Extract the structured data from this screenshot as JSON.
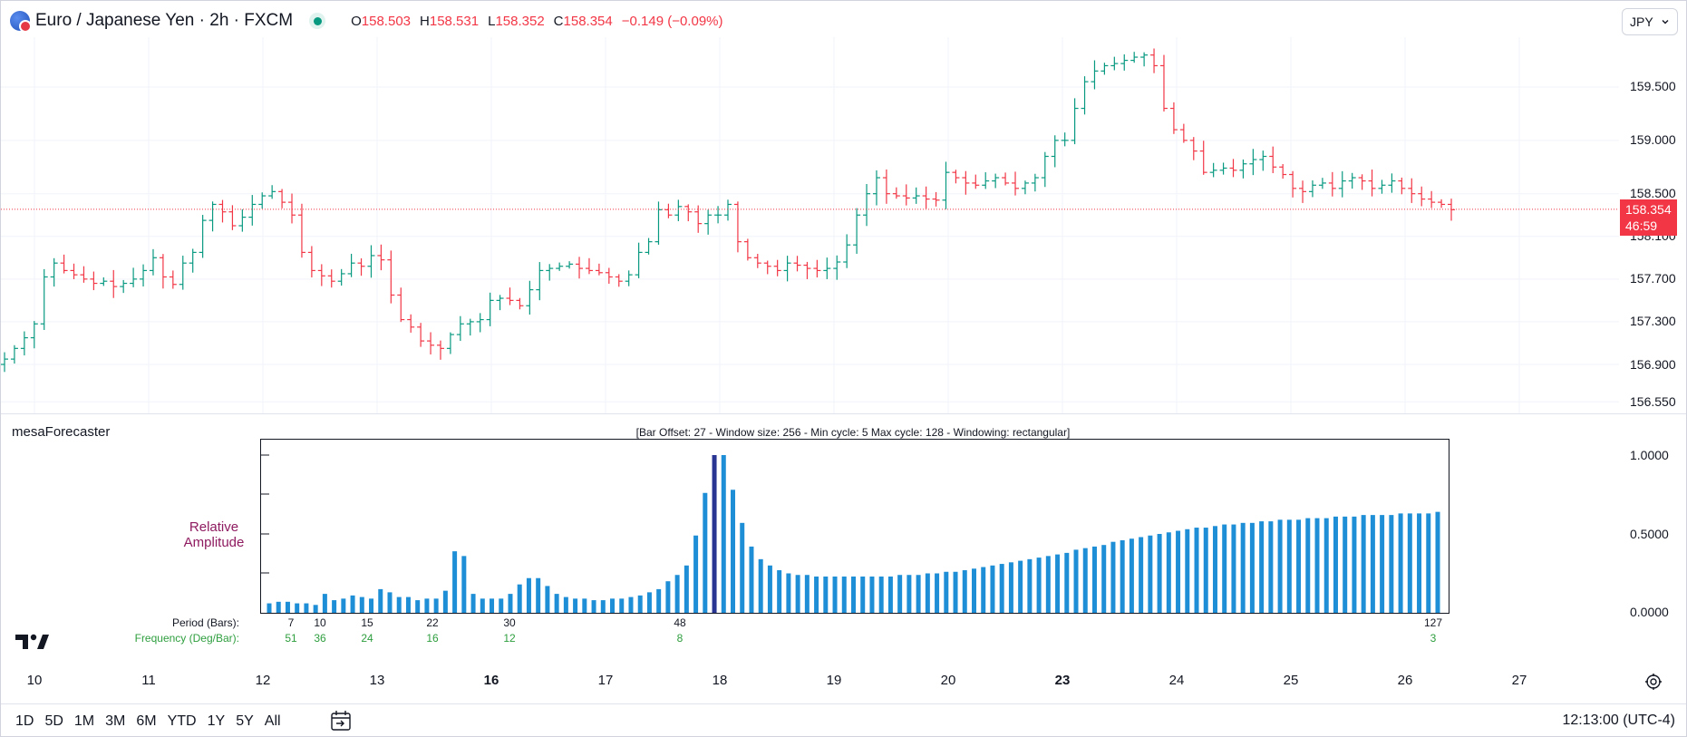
{
  "header": {
    "symbol_title": "Euro / Japanese Yen · 2h · FXCM",
    "ohlc": [
      {
        "k": "O",
        "v": "158.503"
      },
      {
        "k": "H",
        "v": "158.531"
      },
      {
        "k": "L",
        "v": "158.352"
      },
      {
        "k": "C",
        "v": "158.354"
      }
    ],
    "change": "−0.149 (−0.09%)",
    "currency": "JPY"
  },
  "price_axis": {
    "labels": [
      "159.500",
      "159.000",
      "158.500",
      "158.100",
      "157.700",
      "157.300",
      "156.900",
      "156.550"
    ],
    "last_price": "158.354",
    "countdown": "46:59"
  },
  "indicator": {
    "name": "mesaForecaster",
    "spectrum_header": "[Bar Offset: 27 - Window size: 256 - Min cycle: 5 Max cycle: 128 - Windowing: rectangular]",
    "rel_amp_line1": "Relative",
    "rel_amp_line2": "Amplitude",
    "y_labels": [
      "1.0000",
      "0.5000",
      "0.0000"
    ],
    "period_caption": "Period (Bars):",
    "frequency_caption": "Frequency (Deg/Bar):",
    "periods": [
      "7",
      "10",
      "15",
      "22",
      "30",
      "48",
      "127"
    ],
    "frequencies": [
      "51",
      "36",
      "24",
      "16",
      "12",
      "8",
      "3"
    ]
  },
  "time_axis": {
    "labels": [
      {
        "t": "10",
        "bold": false
      },
      {
        "t": "11",
        "bold": false
      },
      {
        "t": "12",
        "bold": false
      },
      {
        "t": "13",
        "bold": false
      },
      {
        "t": "16",
        "bold": true
      },
      {
        "t": "17",
        "bold": false
      },
      {
        "t": "18",
        "bold": false
      },
      {
        "t": "19",
        "bold": false
      },
      {
        "t": "20",
        "bold": false
      },
      {
        "t": "23",
        "bold": true
      },
      {
        "t": "24",
        "bold": false
      },
      {
        "t": "25",
        "bold": false
      },
      {
        "t": "26",
        "bold": false
      },
      {
        "t": "27",
        "bold": false
      }
    ]
  },
  "bottom_bar": {
    "ranges": [
      "1D",
      "5D",
      "1M",
      "3M",
      "6M",
      "YTD",
      "1Y",
      "5Y",
      "All"
    ],
    "clock": "12:13:00 (UTC-4)"
  },
  "colors": {
    "up": "#089981",
    "down": "#f23645",
    "spectrum_bar": "#1e8fd6",
    "spectrum_peak": "#283593",
    "freq_text": "#2e9e3e",
    "rel_amp": "#8e1a5f"
  },
  "chart_data": [
    {
      "type": "ohlc",
      "symbol": "EUR/JPY",
      "y_ticks": [
        159.5,
        159.0,
        158.5,
        158.1,
        157.7,
        157.3,
        156.9,
        156.55
      ],
      "last": 158.354,
      "close_path": [
        156.95,
        157.05,
        157.15,
        157.28,
        157.72,
        157.85,
        157.78,
        157.74,
        157.7,
        157.66,
        157.68,
        157.63,
        157.66,
        157.7,
        157.78,
        157.9,
        157.72,
        157.65,
        157.85,
        157.95,
        158.25,
        158.4,
        158.33,
        158.2,
        158.28,
        158.4,
        158.48,
        158.52,
        158.42,
        158.3,
        157.95,
        157.78,
        157.73,
        157.68,
        157.75,
        157.85,
        157.82,
        157.92,
        157.88,
        157.55,
        157.32,
        157.25,
        157.12,
        157.08,
        157.05,
        157.18,
        157.28,
        157.3,
        157.32,
        157.5,
        157.52,
        157.5,
        157.45,
        157.6,
        157.78,
        157.8,
        157.82,
        157.84,
        157.8,
        157.78,
        157.76,
        157.72,
        157.68,
        157.74,
        157.95,
        158.05,
        158.35,
        158.3,
        158.38,
        158.33,
        158.22,
        158.3,
        158.3,
        158.4,
        158.05,
        157.9,
        157.85,
        157.82,
        157.78,
        157.85,
        157.83,
        157.8,
        157.78,
        157.8,
        157.86,
        158.02,
        158.3,
        158.5,
        158.65,
        158.5,
        158.48,
        158.46,
        158.48,
        158.45,
        158.44,
        158.7,
        158.65,
        158.6,
        158.58,
        158.62,
        158.65,
        158.6,
        158.55,
        158.6,
        158.65,
        158.85,
        159.0,
        159.0,
        159.3,
        159.55,
        159.65,
        159.7,
        159.72,
        159.75,
        159.78,
        159.8,
        159.7,
        159.3,
        159.1,
        159.0,
        158.9,
        158.7,
        158.72,
        158.74,
        158.72,
        158.78,
        158.82,
        158.85,
        158.75,
        158.68,
        158.55,
        158.52,
        158.58,
        158.6,
        158.55,
        158.62,
        158.65,
        158.62,
        158.55,
        158.58,
        158.62,
        158.55,
        158.5,
        158.45,
        158.42,
        158.4,
        158.35
      ]
    },
    {
      "type": "bar",
      "title": "[Bar Offset: 27 - Window size: 256 - Min cycle: 5 Max cycle: 128 - Windowing: rectangular]",
      "ylabel": "Relative Amplitude",
      "ylim": [
        0,
        1
      ],
      "period_ticks": [
        7,
        10,
        15,
        22,
        30,
        48,
        127
      ],
      "peak_period": 48,
      "values": [
        0.06,
        0.07,
        0.07,
        0.06,
        0.06,
        0.05,
        0.12,
        0.08,
        0.09,
        0.11,
        0.1,
        0.09,
        0.15,
        0.13,
        0.1,
        0.1,
        0.08,
        0.09,
        0.09,
        0.14,
        0.39,
        0.36,
        0.12,
        0.09,
        0.09,
        0.09,
        0.12,
        0.18,
        0.22,
        0.22,
        0.17,
        0.12,
        0.1,
        0.09,
        0.09,
        0.08,
        0.08,
        0.09,
        0.09,
        0.1,
        0.11,
        0.13,
        0.15,
        0.2,
        0.24,
        0.3,
        0.49,
        0.76,
        1.0,
        1.0,
        0.78,
        0.57,
        0.42,
        0.34,
        0.3,
        0.27,
        0.25,
        0.24,
        0.24,
        0.23,
        0.23,
        0.23,
        0.23,
        0.23,
        0.23,
        0.23,
        0.23,
        0.23,
        0.24,
        0.24,
        0.24,
        0.25,
        0.25,
        0.26,
        0.26,
        0.27,
        0.28,
        0.29,
        0.3,
        0.31,
        0.32,
        0.33,
        0.34,
        0.35,
        0.36,
        0.37,
        0.38,
        0.4,
        0.41,
        0.42,
        0.43,
        0.45,
        0.46,
        0.47,
        0.48,
        0.49,
        0.5,
        0.51,
        0.52,
        0.53,
        0.54,
        0.54,
        0.55,
        0.56,
        0.56,
        0.57,
        0.57,
        0.58,
        0.58,
        0.59,
        0.59,
        0.59,
        0.6,
        0.6,
        0.6,
        0.61,
        0.61,
        0.61,
        0.62,
        0.62,
        0.62,
        0.62,
        0.63,
        0.63,
        0.63,
        0.63,
        0.64
      ]
    }
  ]
}
